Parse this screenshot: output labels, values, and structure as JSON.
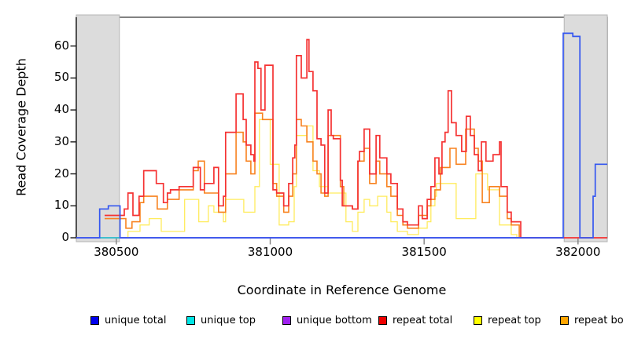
{
  "chart_data": {
    "type": "line",
    "subtype": "step-coverage",
    "title": "",
    "xlabel": "Coordinate in Reference Genome",
    "ylabel": "Read Coverage Depth",
    "xlim": [
      380370,
      382095
    ],
    "ylim": [
      0,
      69
    ],
    "x_ticks": [
      380500,
      381000,
      381500,
      382000
    ],
    "y_ticks": [
      0,
      10,
      20,
      30,
      40,
      50,
      60
    ],
    "grid": false,
    "shaded_regions": [
      {
        "name": "left-flank",
        "x0": 380370,
        "x1": 380510
      },
      {
        "name": "right-flank",
        "x0": 381955,
        "x1": 382095
      }
    ],
    "shade_color": "#dcdcdc",
    "shade_border_color": "#b5b5b5",
    "box_color": "#4d4d4d",
    "axis_color": "#1a1a1a",
    "x_tick_color": "#808080",
    "series": [
      {
        "name": "repeat top",
        "color": "#ffec5c",
        "lw": 1.3,
        "steps": [
          [
            380510,
            0
          ],
          [
            380538,
            2
          ],
          [
            380577,
            4
          ],
          [
            380607,
            6
          ],
          [
            380646,
            2
          ],
          [
            380722,
            12
          ],
          [
            380768,
            5
          ],
          [
            380799,
            10
          ],
          [
            380817,
            8
          ],
          [
            380848,
            5
          ],
          [
            380855,
            12
          ],
          [
            380914,
            8
          ],
          [
            380950,
            16
          ],
          [
            380965,
            37
          ],
          [
            381000,
            23
          ],
          [
            381029,
            4
          ],
          [
            381060,
            5
          ],
          [
            381078,
            16
          ],
          [
            381085,
            32
          ],
          [
            381119,
            35
          ],
          [
            381139,
            21
          ],
          [
            381160,
            16
          ],
          [
            381188,
            14
          ],
          [
            381246,
            5
          ],
          [
            381267,
            2
          ],
          [
            381285,
            8
          ],
          [
            381305,
            12
          ],
          [
            381323,
            10
          ],
          [
            381349,
            13
          ],
          [
            381379,
            8
          ],
          [
            381392,
            5
          ],
          [
            381413,
            2
          ],
          [
            381446,
            1
          ],
          [
            381482,
            3
          ],
          [
            381510,
            5
          ],
          [
            381522,
            10
          ],
          [
            381535,
            13
          ],
          [
            381540,
            17
          ],
          [
            381604,
            6
          ],
          [
            381668,
            20
          ],
          [
            381706,
            15
          ],
          [
            381745,
            4
          ],
          [
            381783,
            1
          ],
          [
            381801,
            0
          ]
        ]
      },
      {
        "name": "repeat bottom",
        "color": "#f8821f",
        "lw": 1.6,
        "steps": [
          [
            380462,
            6
          ],
          [
            380531,
            3
          ],
          [
            380551,
            5
          ],
          [
            380577,
            11
          ],
          [
            380589,
            13
          ],
          [
            380633,
            9
          ],
          [
            380666,
            12
          ],
          [
            380704,
            15
          ],
          [
            380750,
            21
          ],
          [
            380766,
            24
          ],
          [
            380786,
            14
          ],
          [
            380832,
            8
          ],
          [
            380855,
            20
          ],
          [
            380889,
            33
          ],
          [
            380912,
            30
          ],
          [
            380922,
            24
          ],
          [
            380937,
            20
          ],
          [
            380950,
            39
          ],
          [
            380975,
            37
          ],
          [
            381009,
            17
          ],
          [
            381021,
            13
          ],
          [
            381044,
            8
          ],
          [
            381060,
            13
          ],
          [
            381073,
            20
          ],
          [
            381085,
            37
          ],
          [
            381101,
            35
          ],
          [
            381119,
            30
          ],
          [
            381139,
            24
          ],
          [
            381152,
            20
          ],
          [
            381165,
            14
          ],
          [
            381177,
            13
          ],
          [
            381188,
            32
          ],
          [
            381228,
            16
          ],
          [
            381239,
            10
          ],
          [
            381267,
            9
          ],
          [
            381285,
            24
          ],
          [
            381305,
            28
          ],
          [
            381323,
            17
          ],
          [
            381344,
            24
          ],
          [
            381356,
            20
          ],
          [
            381379,
            16
          ],
          [
            381392,
            13
          ],
          [
            381413,
            7
          ],
          [
            381431,
            4
          ],
          [
            381446,
            3
          ],
          [
            381482,
            7
          ],
          [
            381510,
            10
          ],
          [
            381522,
            12
          ],
          [
            381535,
            15
          ],
          [
            381553,
            22
          ],
          [
            381584,
            28
          ],
          [
            381604,
            23
          ],
          [
            381635,
            34
          ],
          [
            381663,
            28
          ],
          [
            381676,
            24
          ],
          [
            381689,
            11
          ],
          [
            381712,
            16
          ],
          [
            381745,
            13
          ],
          [
            381770,
            6
          ],
          [
            381783,
            4
          ],
          [
            381809,
            0
          ],
          [
            381955,
            0
          ]
        ]
      },
      {
        "name": "repeat total",
        "color": "#f53232",
        "lw": 1.7,
        "steps": [
          [
            380462,
            7
          ],
          [
            380526,
            9
          ],
          [
            380538,
            14
          ],
          [
            380554,
            7
          ],
          [
            380574,
            13
          ],
          [
            380589,
            21
          ],
          [
            380630,
            17
          ],
          [
            380653,
            11
          ],
          [
            380666,
            14
          ],
          [
            380676,
            15
          ],
          [
            380704,
            16
          ],
          [
            380750,
            22
          ],
          [
            380773,
            15
          ],
          [
            380786,
            17
          ],
          [
            380817,
            22
          ],
          [
            380832,
            10
          ],
          [
            380848,
            13
          ],
          [
            380855,
            33
          ],
          [
            380889,
            45
          ],
          [
            380912,
            37
          ],
          [
            380922,
            29
          ],
          [
            380937,
            26
          ],
          [
            380947,
            24
          ],
          [
            380950,
            55
          ],
          [
            380960,
            53
          ],
          [
            380970,
            40
          ],
          [
            380983,
            54
          ],
          [
            381009,
            15
          ],
          [
            381021,
            14
          ],
          [
            381044,
            10
          ],
          [
            381060,
            17
          ],
          [
            381073,
            25
          ],
          [
            381080,
            29
          ],
          [
            381085,
            57
          ],
          [
            381101,
            50
          ],
          [
            381119,
            62
          ],
          [
            381126,
            52
          ],
          [
            381139,
            46
          ],
          [
            381152,
            31
          ],
          [
            381165,
            29
          ],
          [
            381177,
            14
          ],
          [
            381188,
            40
          ],
          [
            381198,
            32
          ],
          [
            381205,
            31
          ],
          [
            381228,
            18
          ],
          [
            381234,
            10
          ],
          [
            381267,
            9
          ],
          [
            381285,
            24
          ],
          [
            381290,
            27
          ],
          [
            381305,
            34
          ],
          [
            381323,
            20
          ],
          [
            381344,
            32
          ],
          [
            381356,
            25
          ],
          [
            381379,
            20
          ],
          [
            381392,
            17
          ],
          [
            381413,
            9
          ],
          [
            381431,
            5
          ],
          [
            381446,
            4
          ],
          [
            381482,
            10
          ],
          [
            381494,
            6
          ],
          [
            381510,
            12
          ],
          [
            381522,
            16
          ],
          [
            381535,
            25
          ],
          [
            381548,
            20
          ],
          [
            381558,
            30
          ],
          [
            381568,
            33
          ],
          [
            381578,
            46
          ],
          [
            381589,
            36
          ],
          [
            381604,
            32
          ],
          [
            381622,
            27
          ],
          [
            381637,
            38
          ],
          [
            381650,
            32
          ],
          [
            381663,
            26
          ],
          [
            381676,
            21
          ],
          [
            381686,
            30
          ],
          [
            381701,
            24
          ],
          [
            381724,
            26
          ],
          [
            381745,
            30
          ],
          [
            381750,
            16
          ],
          [
            381770,
            8
          ],
          [
            381783,
            5
          ],
          [
            381814,
            0
          ],
          [
            382095,
            0
          ]
        ]
      },
      {
        "name": "unique bottom",
        "color": "#8b2be2",
        "lw": 1.4,
        "steps": [
          [
            380370,
            0
          ],
          [
            381955,
            0
          ]
        ]
      },
      {
        "name": "unique top",
        "color": "#19d3c5",
        "lw": 1.4,
        "steps": [
          [
            380446,
            0
          ],
          [
            380512,
            0
          ]
        ]
      },
      {
        "name": "unique total",
        "color": "#3557f0",
        "lw": 1.7,
        "steps": [
          [
            380370,
            0
          ],
          [
            380446,
            9
          ],
          [
            380474,
            10
          ],
          [
            380512,
            0
          ],
          [
            381952,
            64
          ],
          [
            381983,
            63
          ],
          [
            382006,
            0
          ],
          [
            382049,
            13
          ],
          [
            382056,
            23
          ],
          [
            382095,
            23
          ]
        ]
      }
    ]
  },
  "legend": {
    "items": [
      {
        "label": "unique total",
        "color": "#0000ee"
      },
      {
        "label": "unique top",
        "color": "#00e5e5"
      },
      {
        "label": "unique bottom",
        "color": "#a020f0"
      },
      {
        "label": "repeat total",
        "color": "#ee0000"
      },
      {
        "label": "repeat top",
        "color": "#ffff00"
      },
      {
        "label": "repeat bottom",
        "color": "#ffa500"
      }
    ]
  }
}
